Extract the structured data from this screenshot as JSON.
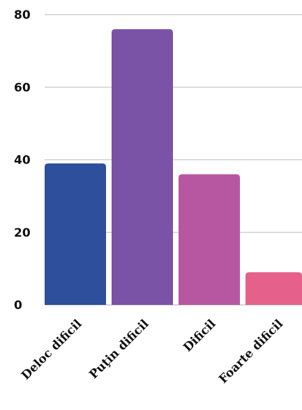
{
  "chart_data": {
    "type": "bar",
    "categories": [
      "Deloc dificil",
      "Puţin dificil",
      "Dificil",
      "Foarte dificil"
    ],
    "values": [
      39,
      76,
      36,
      9
    ],
    "colors": [
      "#2d4f9c",
      "#7a53a6",
      "#b857a1",
      "#e6608c"
    ],
    "title": "",
    "xlabel": "",
    "ylabel": "",
    "ylim": [
      0,
      80
    ],
    "yticks": [
      0,
      20,
      40,
      60,
      80
    ],
    "grid": true,
    "legend": "none"
  }
}
